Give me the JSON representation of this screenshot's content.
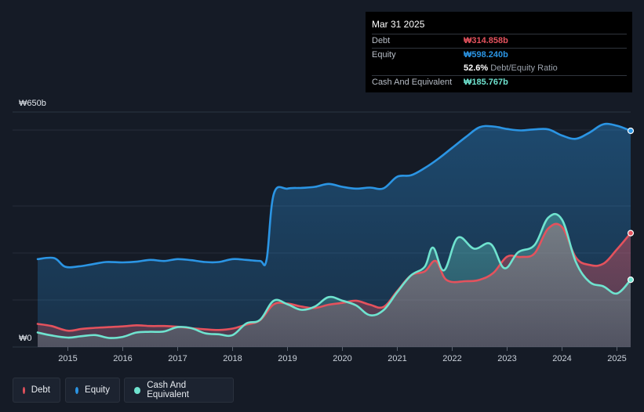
{
  "tooltip": {
    "date": "Mar 31 2025",
    "debt_label": "Debt",
    "debt_value": "₩314.858b",
    "equity_label": "Equity",
    "equity_value": "₩598.240b",
    "ratio_value": "52.6%",
    "ratio_label": "Debt/Equity Ratio",
    "cash_label": "Cash And Equivalent",
    "cash_value": "₩185.767b"
  },
  "legend": [
    {
      "label": "Debt",
      "color": "#e4525d"
    },
    {
      "label": "Equity",
      "color": "#2b95e4"
    },
    {
      "label": "Cash And Equivalent",
      "color": "#6fe3cf"
    }
  ],
  "chart_data": {
    "type": "area",
    "y_top_label": "₩650b",
    "y_bottom_label": "₩0",
    "ylim": [
      0,
      650
    ],
    "xlim": [
      2014.45,
      2025.25
    ],
    "x_tick_labels": [
      "2015",
      "2016",
      "2017",
      "2018",
      "2019",
      "2020",
      "2021",
      "2022",
      "2023",
      "2024",
      "2025"
    ],
    "x_ticks": [
      2015,
      2016,
      2017,
      2018,
      2019,
      2020,
      2021,
      2022,
      2023,
      2024,
      2025
    ],
    "grid": true,
    "colors": {
      "debt": "#e4525d",
      "equity": "#2b95e4",
      "cash": "#6fe3cf"
    },
    "series": [
      {
        "name": "Equity",
        "key": "equity",
        "points": [
          [
            2014.45,
            243
          ],
          [
            2014.75,
            246
          ],
          [
            2014.95,
            222
          ],
          [
            2015.2,
            223
          ],
          [
            2015.45,
            229
          ],
          [
            2015.7,
            235
          ],
          [
            2016.0,
            234
          ],
          [
            2016.25,
            236
          ],
          [
            2016.5,
            241
          ],
          [
            2016.75,
            238
          ],
          [
            2017.0,
            243
          ],
          [
            2017.25,
            240
          ],
          [
            2017.5,
            235
          ],
          [
            2017.75,
            235
          ],
          [
            2018.0,
            243
          ],
          [
            2018.25,
            241
          ],
          [
            2018.5,
            238
          ],
          [
            2018.62,
            242
          ],
          [
            2018.75,
            423
          ],
          [
            2019.0,
            438
          ],
          [
            2019.25,
            440
          ],
          [
            2019.5,
            443
          ],
          [
            2019.75,
            451
          ],
          [
            2020.0,
            443
          ],
          [
            2020.25,
            438
          ],
          [
            2020.5,
            441
          ],
          [
            2020.75,
            439
          ],
          [
            2021.0,
            471
          ],
          [
            2021.25,
            475
          ],
          [
            2021.5,
            495
          ],
          [
            2021.75,
            521
          ],
          [
            2022.0,
            551
          ],
          [
            2022.25,
            581
          ],
          [
            2022.5,
            608
          ],
          [
            2022.75,
            610
          ],
          [
            2023.0,
            603
          ],
          [
            2023.25,
            599
          ],
          [
            2023.5,
            602
          ],
          [
            2023.75,
            602
          ],
          [
            2024.0,
            585
          ],
          [
            2024.25,
            576
          ],
          [
            2024.5,
            593
          ],
          [
            2024.75,
            616
          ],
          [
            2025.0,
            612
          ],
          [
            2025.25,
            598
          ]
        ]
      },
      {
        "name": "Debt",
        "key": "debt",
        "points": [
          [
            2014.45,
            64
          ],
          [
            2014.7,
            58
          ],
          [
            2015.0,
            45
          ],
          [
            2015.25,
            50
          ],
          [
            2015.5,
            53
          ],
          [
            2015.75,
            55
          ],
          [
            2016.0,
            57
          ],
          [
            2016.25,
            60
          ],
          [
            2016.5,
            58
          ],
          [
            2016.75,
            58
          ],
          [
            2017.0,
            56
          ],
          [
            2017.25,
            52
          ],
          [
            2017.5,
            49
          ],
          [
            2017.75,
            47
          ],
          [
            2018.0,
            51
          ],
          [
            2018.25,
            62
          ],
          [
            2018.5,
            74
          ],
          [
            2018.75,
            118
          ],
          [
            2019.0,
            120
          ],
          [
            2019.25,
            112
          ],
          [
            2019.5,
            108
          ],
          [
            2019.75,
            117
          ],
          [
            2020.0,
            122
          ],
          [
            2020.25,
            128
          ],
          [
            2020.5,
            117
          ],
          [
            2020.75,
            111
          ],
          [
            2021.0,
            155
          ],
          [
            2021.25,
            198
          ],
          [
            2021.5,
            209
          ],
          [
            2021.7,
            238
          ],
          [
            2021.9,
            185
          ],
          [
            2022.25,
            182
          ],
          [
            2022.5,
            186
          ],
          [
            2022.75,
            205
          ],
          [
            2023.0,
            250
          ],
          [
            2023.25,
            249
          ],
          [
            2023.5,
            259
          ],
          [
            2023.75,
            328
          ],
          [
            2024.0,
            332
          ],
          [
            2024.25,
            248
          ],
          [
            2024.5,
            227
          ],
          [
            2024.75,
            230
          ],
          [
            2025.0,
            270
          ],
          [
            2025.25,
            315
          ]
        ]
      },
      {
        "name": "Cash And Equivalent",
        "key": "cash",
        "points": [
          [
            2014.45,
            40
          ],
          [
            2014.7,
            32
          ],
          [
            2015.0,
            26
          ],
          [
            2015.25,
            30
          ],
          [
            2015.5,
            33
          ],
          [
            2015.75,
            25
          ],
          [
            2016.0,
            28
          ],
          [
            2016.25,
            40
          ],
          [
            2016.5,
            42
          ],
          [
            2016.75,
            43
          ],
          [
            2017.0,
            55
          ],
          [
            2017.25,
            52
          ],
          [
            2017.5,
            38
          ],
          [
            2017.75,
            35
          ],
          [
            2018.0,
            33
          ],
          [
            2018.25,
            65
          ],
          [
            2018.5,
            75
          ],
          [
            2018.75,
            128
          ],
          [
            2019.0,
            118
          ],
          [
            2019.25,
            103
          ],
          [
            2019.5,
            112
          ],
          [
            2019.75,
            138
          ],
          [
            2020.0,
            128
          ],
          [
            2020.25,
            115
          ],
          [
            2020.5,
            88
          ],
          [
            2020.75,
            102
          ],
          [
            2021.0,
            152
          ],
          [
            2021.25,
            198
          ],
          [
            2021.5,
            222
          ],
          [
            2021.65,
            275
          ],
          [
            2021.85,
            212
          ],
          [
            2022.1,
            302
          ],
          [
            2022.4,
            272
          ],
          [
            2022.7,
            285
          ],
          [
            2022.95,
            218
          ],
          [
            2023.2,
            262
          ],
          [
            2023.5,
            282
          ],
          [
            2023.75,
            358
          ],
          [
            2024.0,
            352
          ],
          [
            2024.25,
            236
          ],
          [
            2024.5,
            180
          ],
          [
            2024.75,
            168
          ],
          [
            2025.0,
            148
          ],
          [
            2025.25,
            186
          ]
        ]
      }
    ]
  }
}
